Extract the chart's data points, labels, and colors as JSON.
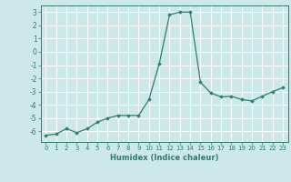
{
  "x": [
    0,
    1,
    2,
    3,
    4,
    5,
    6,
    7,
    8,
    9,
    10,
    11,
    12,
    13,
    14,
    15,
    16,
    17,
    18,
    19,
    20,
    21,
    22,
    23
  ],
  "y": [
    -6.3,
    -6.2,
    -5.8,
    -6.1,
    -5.8,
    -5.3,
    -5.0,
    -4.8,
    -4.8,
    -4.8,
    -3.6,
    -0.9,
    2.8,
    3.0,
    3.0,
    -2.3,
    -3.1,
    -3.4,
    -3.35,
    -3.6,
    -3.7,
    -3.35,
    -3.0,
    -2.7
  ],
  "ylim": [
    -6.8,
    3.5
  ],
  "xlim": [
    -0.5,
    23.5
  ],
  "yticks": [
    -6,
    -5,
    -4,
    -3,
    -2,
    -1,
    0,
    1,
    2,
    3
  ],
  "xticks": [
    0,
    1,
    2,
    3,
    4,
    5,
    6,
    7,
    8,
    9,
    10,
    11,
    12,
    13,
    14,
    15,
    16,
    17,
    18,
    19,
    20,
    21,
    22,
    23
  ],
  "xlabel": "Humidex (Indice chaleur)",
  "line_color": "#2e7d6e",
  "marker": "D",
  "marker_size": 1.8,
  "bg_color": "#cce8e8",
  "grid_color": "#ffffff",
  "spine_color": "#2e7d6e"
}
